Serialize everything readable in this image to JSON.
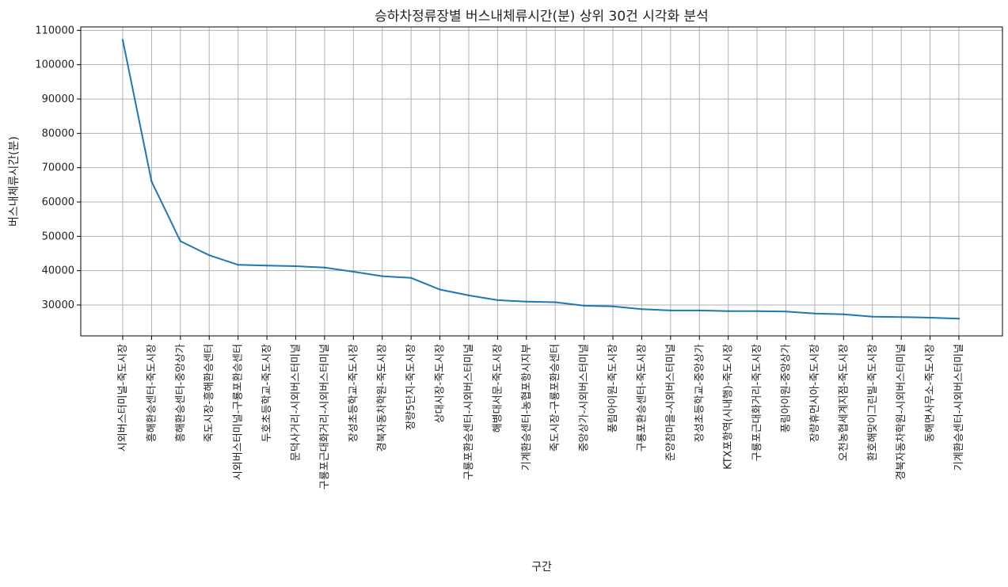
{
  "chart_data": {
    "type": "line",
    "title": "승하차정류장별 버스내체류시간(분) 상위 30건 시각화 분석",
    "xlabel": "구간",
    "ylabel": "버스내체류시간(분)",
    "ylim": [
      21000,
      111000
    ],
    "yticks": [
      30000,
      40000,
      50000,
      60000,
      70000,
      80000,
      90000,
      100000,
      110000
    ],
    "grid": true,
    "line_color": "#1f77b4",
    "categories": [
      "시외버스터미널-죽도시장",
      "흥해환승센터-죽도시장",
      "흥해환승센터-중앙상가",
      "죽도시장-흥해환승센터",
      "시외버스터미널-구룡포환승센터",
      "두호초등학교-죽도시장",
      "문덕사거리-시외버스터미널",
      "구룡포근대화거리-시외버스터미널",
      "장성초등학교-죽도시장",
      "경북자동차학원-죽도시장",
      "장량5단지-죽도시장",
      "상대시장-죽도시장",
      "구룡포환승센터-시외버스터미널",
      "해병대서문-죽도시장",
      "기계환승센터-농협포항시지부",
      "죽도시장-구룡포환승센터",
      "중앙상가-시외버스터미널",
      "풍림아이원-죽도시장",
      "구룡포환승센터-죽도시장",
      "준양참마을-시외버스터미널",
      "장성초등학교-중앙상가",
      "KTX포항역(시내행)-죽도시장",
      "구룡포근대화거리-죽도시장",
      "풍림아이원-중앙상가",
      "장량휴먼시아-죽도시장",
      "오천농협세계지점-죽도시장",
      "환호해맞이그린빌-죽도시장",
      "경북자동차학원-시외버스터미널",
      "동해면사무소-죽도시장",
      "기계환승센터-시외버스터미널"
    ],
    "values": [
      107200,
      66000,
      48600,
      44500,
      41700,
      41500,
      41300,
      40900,
      39700,
      38400,
      37900,
      34500,
      32800,
      31400,
      31000,
      30800,
      29800,
      29600,
      28800,
      28400,
      28400,
      28200,
      28200,
      28100,
      27500,
      27300,
      26600,
      26500,
      26300,
      26000
    ]
  }
}
